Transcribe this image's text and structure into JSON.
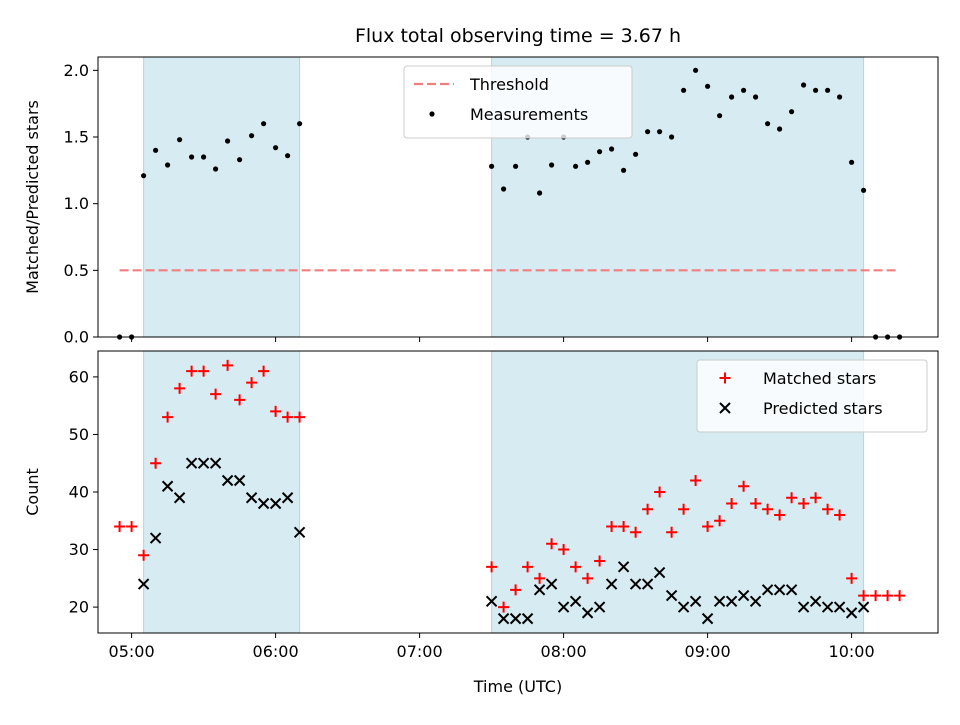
{
  "figure": {
    "title": "Flux total observing time = 3.67 h",
    "xlabel": "Time (UTC)"
  },
  "chart_data": [
    {
      "type": "scatter",
      "panel": "top",
      "ylabel": "Matched/Predicted stars",
      "xlim": [
        "04:46",
        "10:36"
      ],
      "ylim": [
        0,
        2.1
      ],
      "x_ticks": [
        "05:00",
        "06:00",
        "07:00",
        "08:00",
        "09:00",
        "10:00"
      ],
      "y_ticks": [
        "0.0",
        "0.5",
        "1.0",
        "1.5",
        "2.0"
      ],
      "legend_position": "top-center",
      "shaded_intervals": [
        [
          "05:05",
          "06:10"
        ],
        [
          "07:30",
          "10:05"
        ]
      ],
      "threshold": {
        "name": "Threshold",
        "value": 0.5,
        "x_range": [
          "04:55",
          "10:20"
        ],
        "color": "#f08080"
      },
      "series": [
        {
          "name": "Measurements",
          "color": "#000000",
          "x": [
            "04:55",
            "05:00",
            "05:05",
            "05:10",
            "05:15",
            "05:20",
            "05:25",
            "05:30",
            "05:35",
            "05:40",
            "05:45",
            "05:50",
            "05:55",
            "06:00",
            "06:05",
            "06:10",
            "07:30",
            "07:35",
            "07:40",
            "07:45",
            "07:50",
            "07:55",
            "08:00",
            "08:05",
            "08:10",
            "08:15",
            "08:20",
            "08:25",
            "08:30",
            "08:35",
            "08:40",
            "08:45",
            "08:50",
            "08:55",
            "09:00",
            "09:05",
            "09:10",
            "09:15",
            "09:20",
            "09:25",
            "09:30",
            "09:35",
            "09:40",
            "09:45",
            "09:50",
            "09:55",
            "10:00",
            "10:05",
            "10:10",
            "10:15",
            "10:20"
          ],
          "y": [
            0,
            0,
            1.21,
            1.4,
            1.29,
            1.48,
            1.35,
            1.35,
            1.26,
            1.47,
            1.33,
            1.51,
            1.6,
            1.42,
            1.36,
            1.6,
            1.28,
            1.11,
            1.28,
            1.5,
            1.08,
            1.29,
            1.5,
            1.28,
            1.31,
            1.39,
            1.41,
            1.25,
            1.37,
            1.54,
            1.54,
            1.5,
            1.85,
            2.0,
            1.88,
            1.66,
            1.8,
            1.85,
            1.8,
            1.6,
            1.56,
            1.69,
            1.89,
            1.85,
            1.85,
            1.8,
            1.31,
            1.1,
            0,
            0,
            0
          ]
        }
      ]
    },
    {
      "type": "scatter",
      "panel": "bottom",
      "ylabel": "Count",
      "xlim": [
        "04:46",
        "10:36"
      ],
      "ylim": [
        15.5,
        64.5
      ],
      "x_ticks": [
        "05:00",
        "06:00",
        "07:00",
        "08:00",
        "09:00",
        "10:00"
      ],
      "y_ticks": [
        "20",
        "30",
        "40",
        "50",
        "60"
      ],
      "legend_position": "top-right",
      "shaded_intervals": [
        [
          "05:05",
          "06:10"
        ],
        [
          "07:30",
          "10:05"
        ]
      ],
      "series": [
        {
          "name": "Matched stars",
          "marker": "plus",
          "color": "#ff0000",
          "x": [
            "04:55",
            "05:00",
            "05:05",
            "05:10",
            "05:15",
            "05:20",
            "05:25",
            "05:30",
            "05:35",
            "05:40",
            "05:45",
            "05:50",
            "05:55",
            "06:00",
            "06:05",
            "06:10",
            "07:30",
            "07:35",
            "07:40",
            "07:45",
            "07:50",
            "07:55",
            "08:00",
            "08:05",
            "08:10",
            "08:15",
            "08:20",
            "08:25",
            "08:30",
            "08:35",
            "08:40",
            "08:45",
            "08:50",
            "08:55",
            "09:00",
            "09:05",
            "09:10",
            "09:15",
            "09:20",
            "09:25",
            "09:30",
            "09:35",
            "09:40",
            "09:45",
            "09:50",
            "09:55",
            "10:00",
            "10:05",
            "10:10",
            "10:15",
            "10:20"
          ],
          "y": [
            34,
            34,
            29,
            45,
            53,
            58,
            61,
            61,
            57,
            62,
            56,
            59,
            61,
            54,
            53,
            53,
            27,
            20,
            23,
            27,
            25,
            31,
            30,
            27,
            25,
            28,
            34,
            34,
            33,
            37,
            40,
            33,
            37,
            42,
            34,
            35,
            38,
            41,
            38,
            37,
            36,
            39,
            38,
            39,
            37,
            36,
            25,
            22,
            22,
            22,
            22
          ]
        },
        {
          "name": "Predicted stars",
          "marker": "x",
          "color": "#000000",
          "x": [
            "05:05",
            "05:10",
            "05:15",
            "05:20",
            "05:25",
            "05:30",
            "05:35",
            "05:40",
            "05:45",
            "05:50",
            "05:55",
            "06:00",
            "06:05",
            "06:10",
            "07:30",
            "07:35",
            "07:40",
            "07:45",
            "07:50",
            "07:55",
            "08:00",
            "08:05",
            "08:10",
            "08:15",
            "08:20",
            "08:25",
            "08:30",
            "08:35",
            "08:40",
            "08:45",
            "08:50",
            "08:55",
            "09:00",
            "09:05",
            "09:10",
            "09:15",
            "09:20",
            "09:25",
            "09:30",
            "09:35",
            "09:40",
            "09:45",
            "09:50",
            "09:55",
            "10:00",
            "10:05"
          ],
          "y": [
            24,
            32,
            41,
            39,
            45,
            45,
            45,
            42,
            42,
            39,
            38,
            38,
            39,
            33,
            21,
            18,
            18,
            18,
            23,
            24,
            20,
            21,
            19,
            20,
            24,
            27,
            24,
            24,
            26,
            22,
            20,
            21,
            18,
            21,
            21,
            22,
            21,
            23,
            23,
            23,
            20,
            21,
            20,
            20,
            19,
            20
          ]
        }
      ]
    }
  ]
}
